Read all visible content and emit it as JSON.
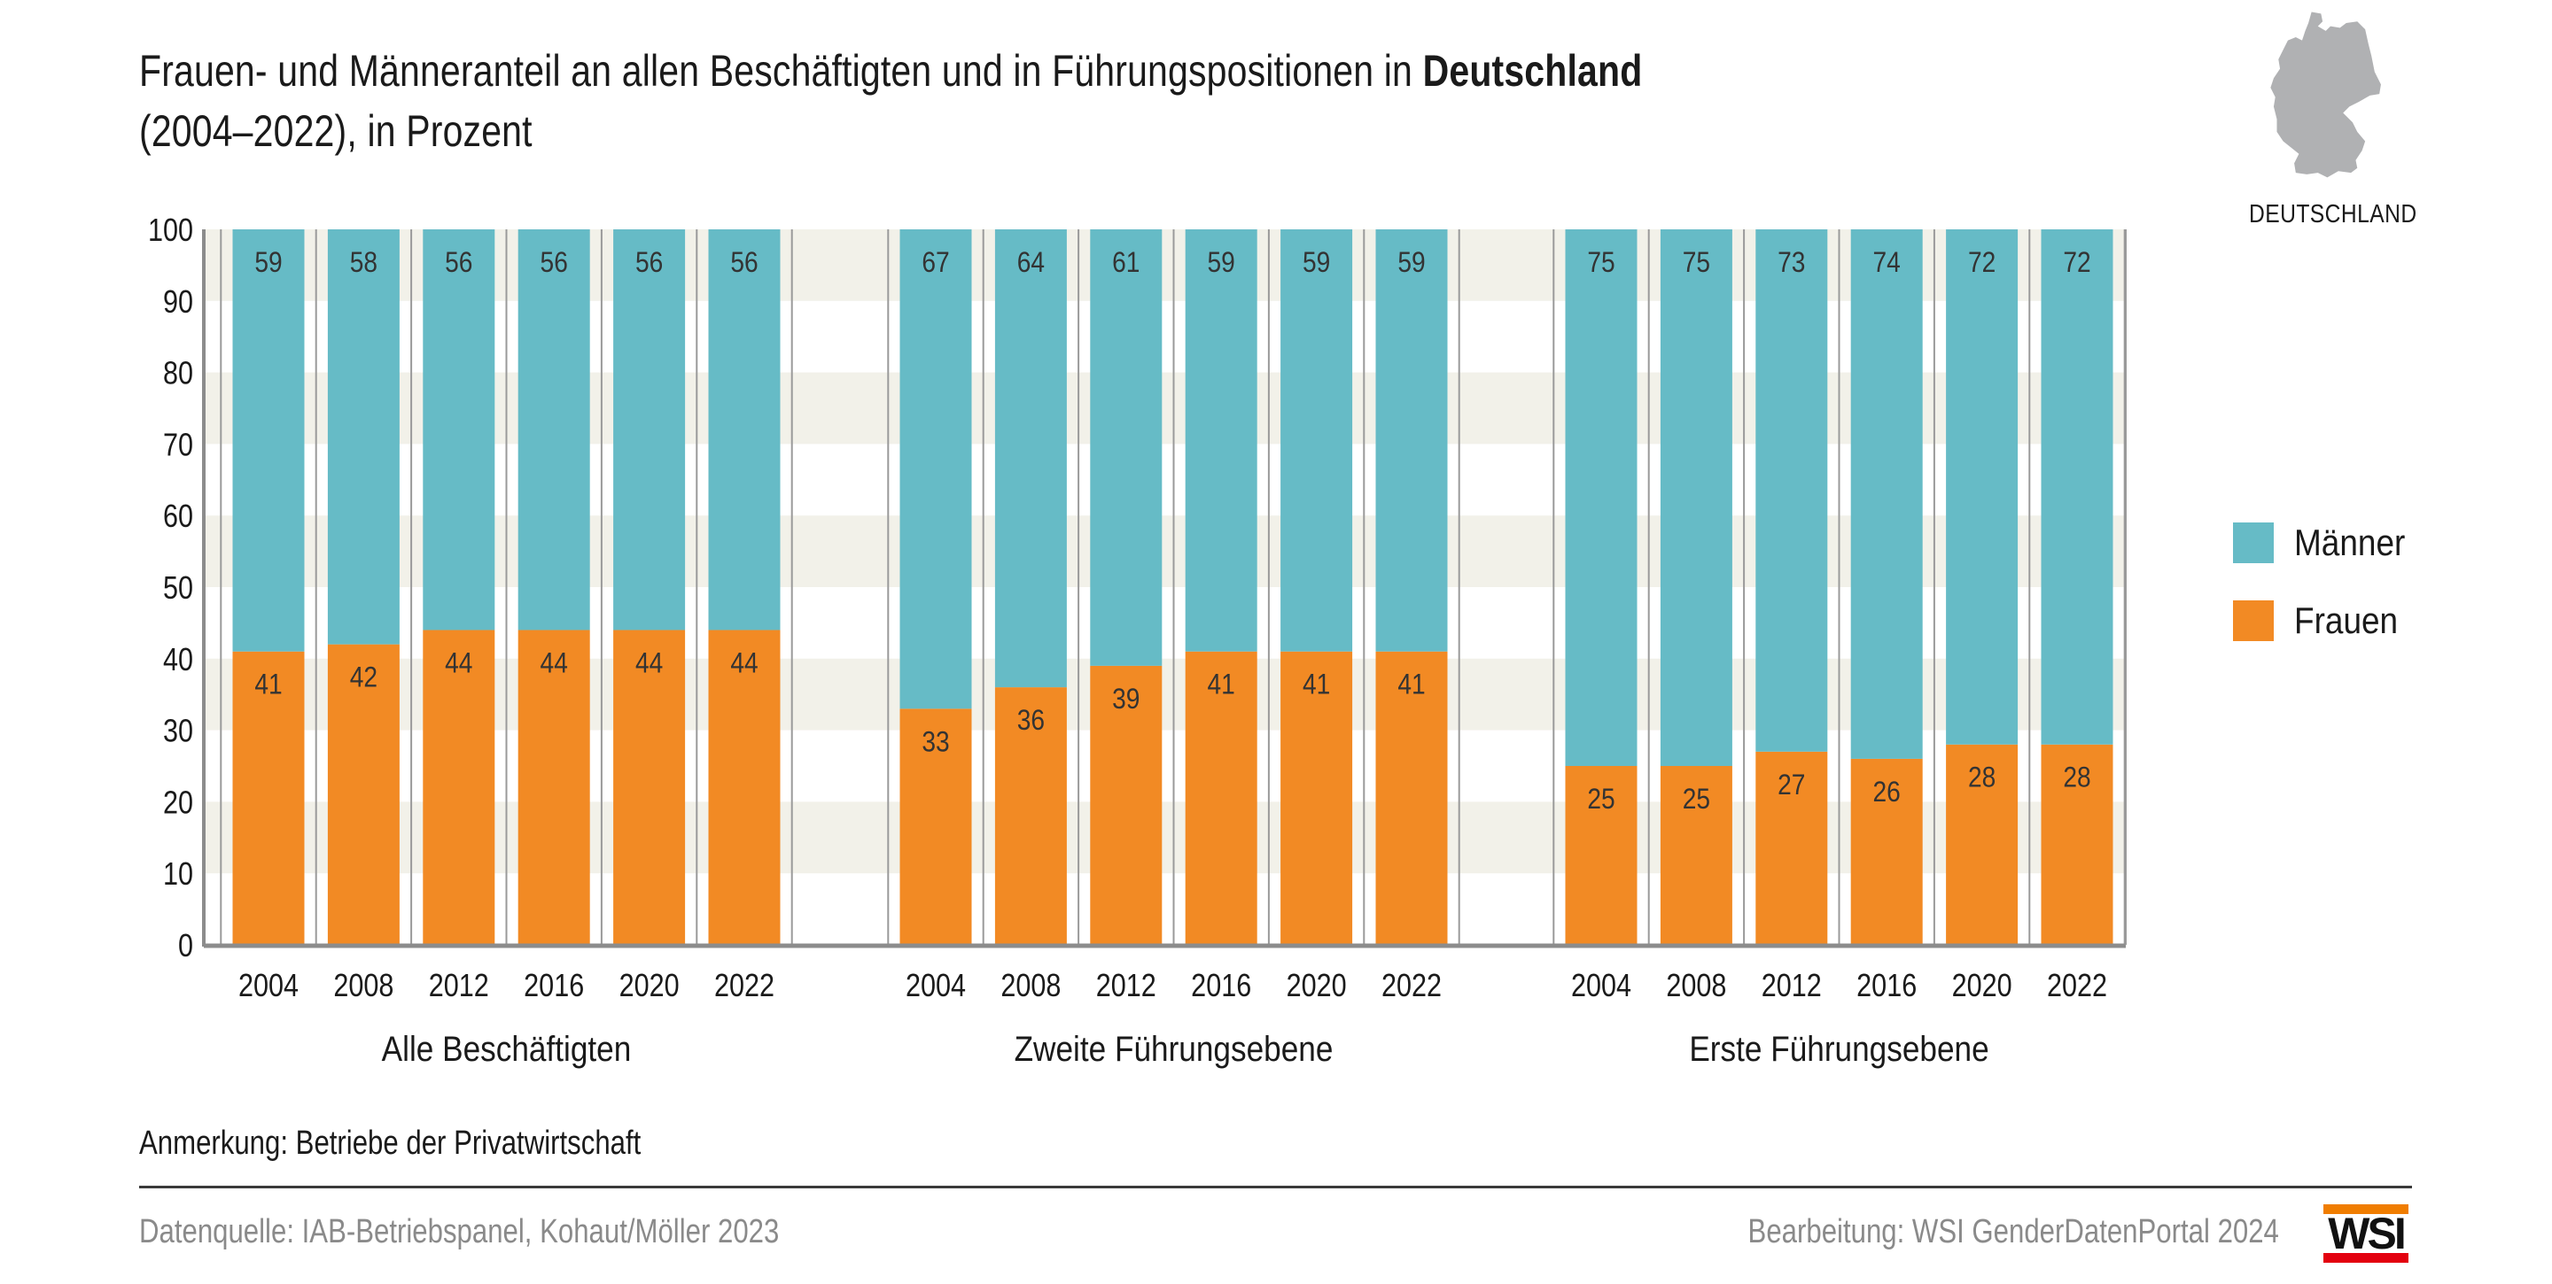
{
  "header": {
    "title_line1_pre": "Frauen- und Männeranteil an allen Beschäftigten und in Führungspositionen in ",
    "title_line1_bold": "Deutschland",
    "title_line2": "(2004–2022), in Prozent"
  },
  "map": {
    "label": "DEUTSCHLAND",
    "icon": "germany-map-icon"
  },
  "legend": [
    {
      "label": "Männer",
      "color": "#66bbc6"
    },
    {
      "label": "Frauen",
      "color": "#f28a24"
    }
  ],
  "footer": {
    "note": "Anmerkung: Betriebe der Privatwirtschaft",
    "source": "Datenquelle:  IAB-Betriebspanel, Kohaut/Möller 2023",
    "credit": "Bearbeitung: WSI GenderDatenPortal 2024",
    "logo_text": "WSI"
  },
  "colors": {
    "maenner": "#66bbc6",
    "frauen": "#f28a24",
    "band": "#f2f1e9",
    "axis": "#8c8c8c",
    "label": "#333333"
  },
  "chart_data": {
    "type": "bar",
    "stacked": true,
    "title": "Frauen- und Männeranteil an allen Beschäftigten und in Führungspositionen in Deutschland (2004–2022), in Prozent",
    "xlabel": "",
    "ylabel": "",
    "ylim": [
      0,
      100
    ],
    "yticks": [
      0,
      10,
      20,
      30,
      40,
      50,
      60,
      70,
      80,
      90,
      100
    ],
    "grid": "alternating horizontal bands",
    "legend_position": "right",
    "groups": [
      {
        "name": "Alle Beschäftigten",
        "categories": [
          "2004",
          "2008",
          "2012",
          "2016",
          "2020",
          "2022"
        ],
        "series": [
          {
            "name": "Frauen",
            "values": [
              41,
              42,
              44,
              44,
              44,
              44
            ]
          },
          {
            "name": "Männer",
            "values": [
              59,
              58,
              56,
              56,
              56,
              56
            ]
          }
        ]
      },
      {
        "name": "Zweite Führungsebene",
        "categories": [
          "2004",
          "2008",
          "2012",
          "2016",
          "2020",
          "2022"
        ],
        "series": [
          {
            "name": "Frauen",
            "values": [
              33,
              36,
              39,
              41,
              41,
              41
            ]
          },
          {
            "name": "Männer",
            "values": [
              67,
              64,
              61,
              59,
              59,
              59
            ]
          }
        ]
      },
      {
        "name": "Erste Führungsebene",
        "categories": [
          "2004",
          "2008",
          "2012",
          "2016",
          "2020",
          "2022"
        ],
        "series": [
          {
            "name": "Frauen",
            "values": [
              25,
              25,
              27,
              26,
              28,
              28
            ]
          },
          {
            "name": "Männer",
            "values": [
              75,
              75,
              73,
              74,
              72,
              72
            ]
          }
        ]
      }
    ]
  }
}
